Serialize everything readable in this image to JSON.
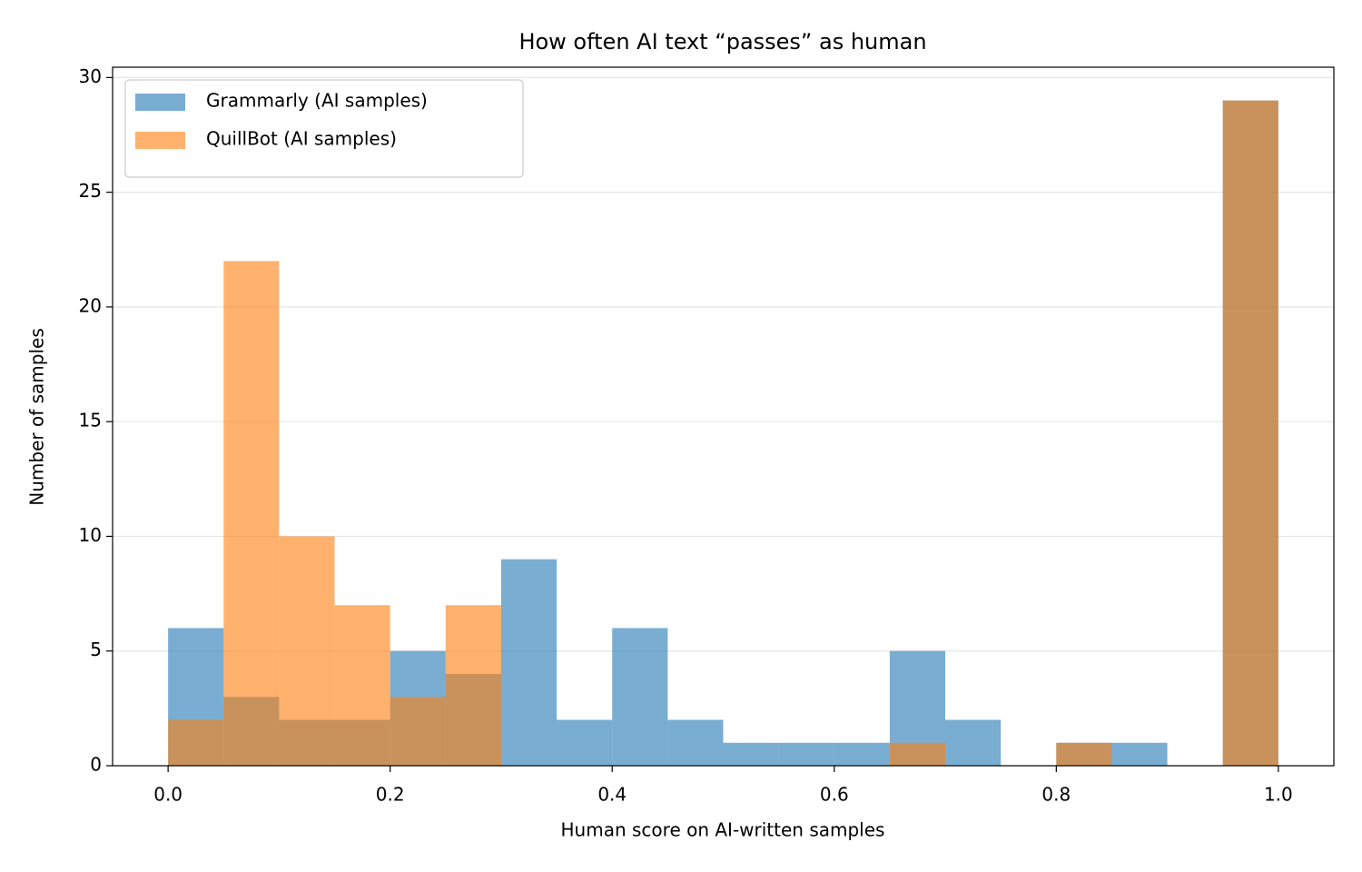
{
  "chart_data": {
    "type": "histogram",
    "title": "How often AI text “passes” as human",
    "xlabel": "Human score on AI-written samples",
    "ylabel": "Number of samples",
    "bins": [
      0,
      0.05,
      0.1,
      0.15,
      0.2,
      0.25,
      0.3,
      0.35,
      0.4,
      0.45,
      0.5,
      0.55,
      0.6,
      0.65,
      0.7,
      0.75,
      0.8,
      0.85,
      0.9,
      0.95,
      1
    ],
    "series": [
      {
        "name": "Grammarly (AI samples)",
        "color": "#1f77b4",
        "values": [
          6,
          3,
          2,
          2,
          5,
          4,
          9,
          2,
          6,
          2,
          1,
          1,
          1,
          5,
          2,
          0,
          1,
          1,
          0,
          29
        ]
      },
      {
        "name": "QuillBot (AI samples)",
        "color": "#ff7f0e",
        "values": [
          2,
          22,
          10,
          7,
          3,
          7,
          0,
          0,
          0,
          0,
          0,
          0,
          0,
          1,
          0,
          0,
          1,
          0,
          0,
          29
        ]
      }
    ],
    "opacity": 0.6,
    "xlim": [
      -0.05,
      1.05
    ],
    "ylim": [
      0,
      30.45
    ],
    "xticks": [
      {
        "value": 0,
        "label": "0.0"
      },
      0.2,
      0.4,
      0.6,
      0.8,
      {
        "value": 1,
        "label": "1.0"
      }
    ],
    "yticks": [
      0,
      5,
      10,
      15,
      20,
      25,
      30
    ],
    "grid": "y",
    "legend": "upper left"
  }
}
